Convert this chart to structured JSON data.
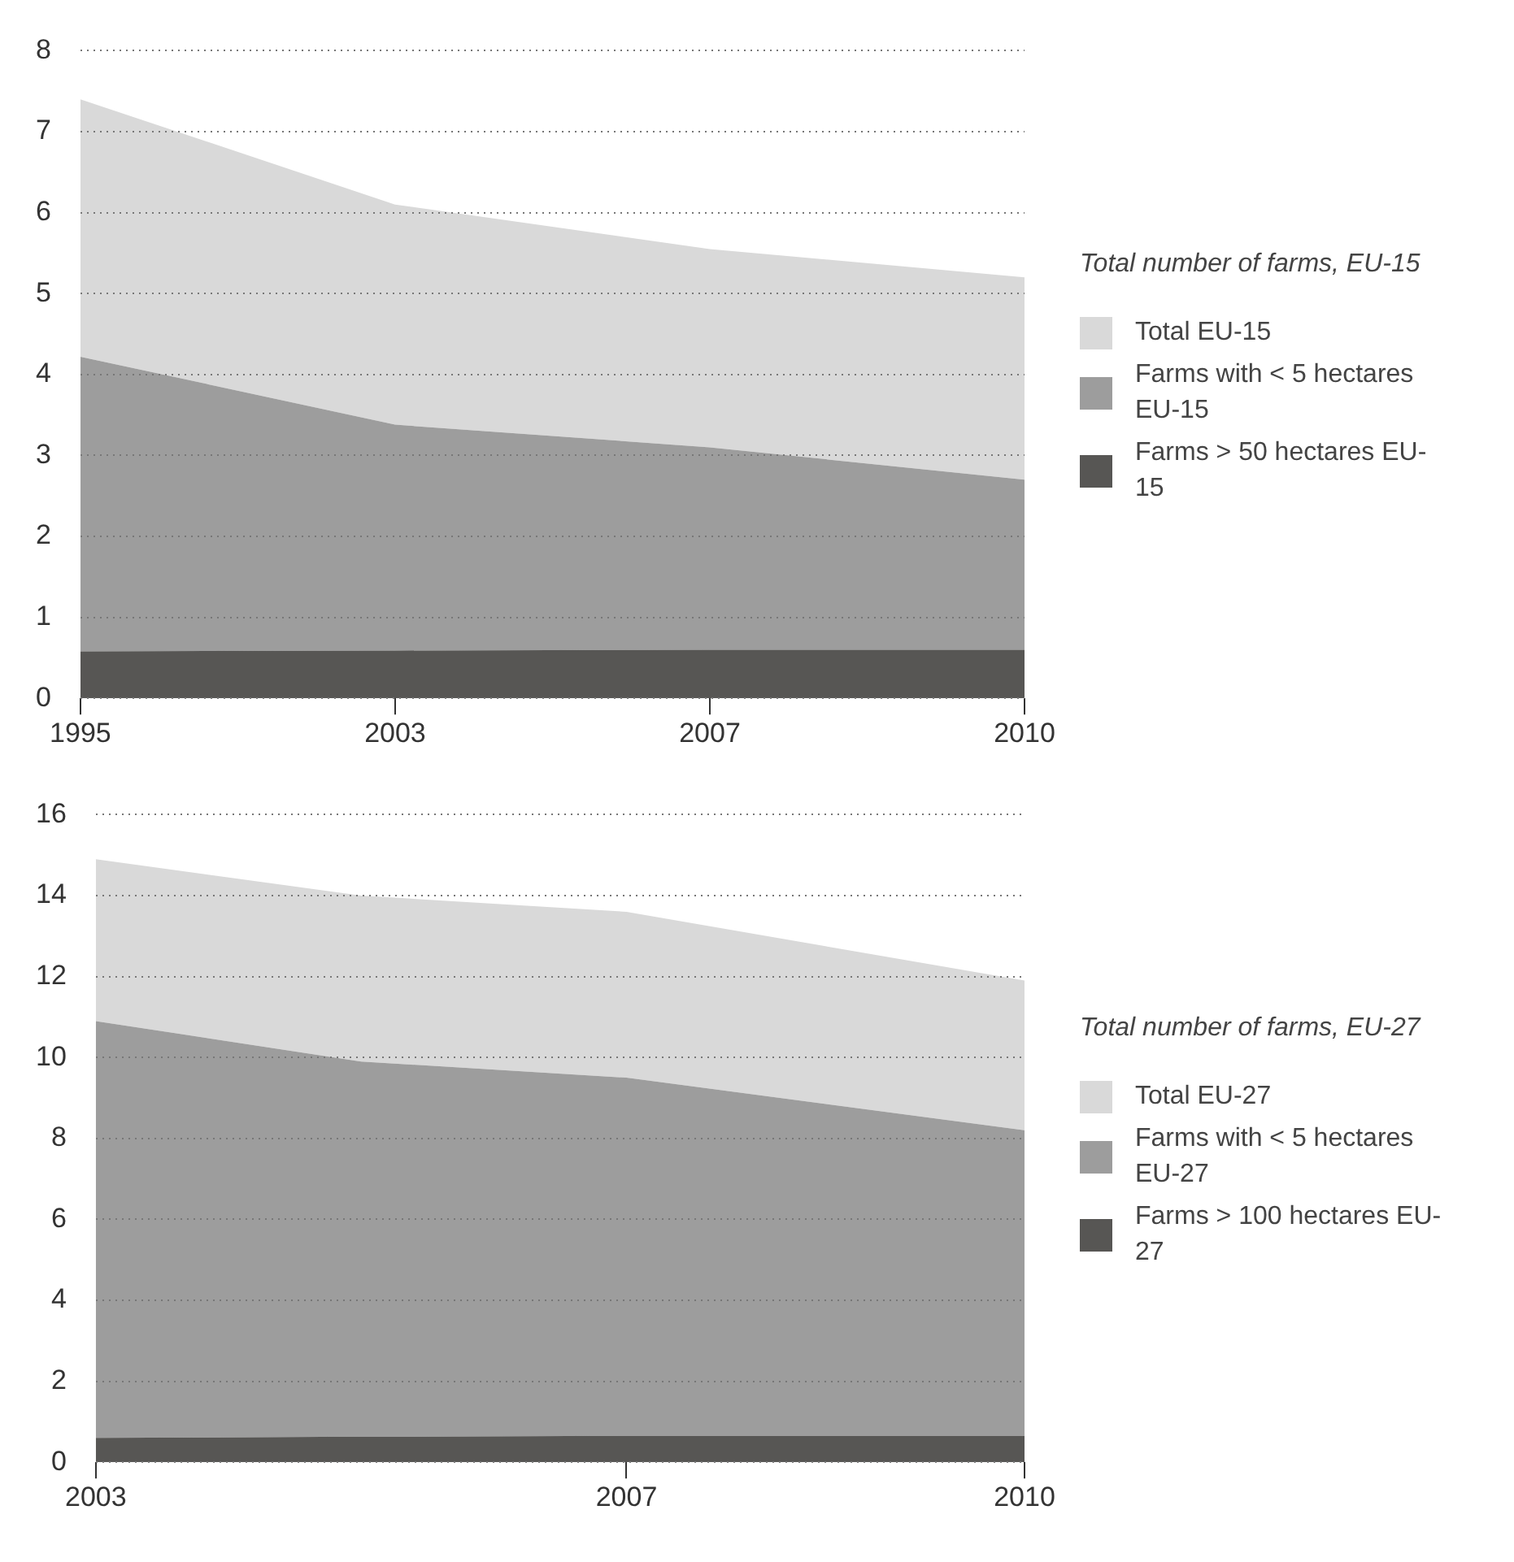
{
  "chart_data": [
    {
      "type": "area",
      "legend_title": "Total number of farms, EU-15",
      "categories": [
        "1995",
        "2003",
        "2007",
        "2010"
      ],
      "ylim": [
        0,
        8
      ],
      "yticks": [
        0,
        1,
        2,
        3,
        4,
        5,
        6,
        7,
        8
      ],
      "grid": "y",
      "legend": "right",
      "series": [
        {
          "name": "Total EU-15",
          "color": "#d9d9d9",
          "values": [
            7.4,
            6.1,
            5.55,
            5.2
          ]
        },
        {
          "name": "Farms with < 5 hectares EU-15",
          "color": "#9d9d9d",
          "values": [
            4.22,
            3.38,
            3.1,
            2.7
          ]
        },
        {
          "name": "Farms > 50 hectares EU-15",
          "color": "#575654",
          "values": [
            0.58,
            0.59,
            0.6,
            0.6
          ]
        }
      ]
    },
    {
      "type": "area",
      "legend_title": "Total number of farms, EU-27",
      "x": [
        2003,
        2005,
        2007,
        2010
      ],
      "xlim": [
        2003,
        2010
      ],
      "xticks": [
        2003,
        2007,
        2010
      ],
      "ylim": [
        0,
        16
      ],
      "yticks": [
        0,
        2,
        4,
        6,
        8,
        10,
        12,
        14,
        16
      ],
      "grid": "y",
      "legend": "right",
      "series": [
        {
          "name": "Total EU-27",
          "color": "#d9d9d9",
          "values": [
            14.9,
            14.0,
            13.6,
            11.9
          ]
        },
        {
          "name": "Farms with < 5 hectares EU-27",
          "color": "#9d9d9d",
          "values": [
            10.9,
            9.9,
            9.5,
            8.2
          ]
        },
        {
          "name": "Farms > 100 hectares EU-27",
          "color": "#575654",
          "values": [
            0.6,
            0.63,
            0.65,
            0.65
          ]
        }
      ]
    }
  ]
}
